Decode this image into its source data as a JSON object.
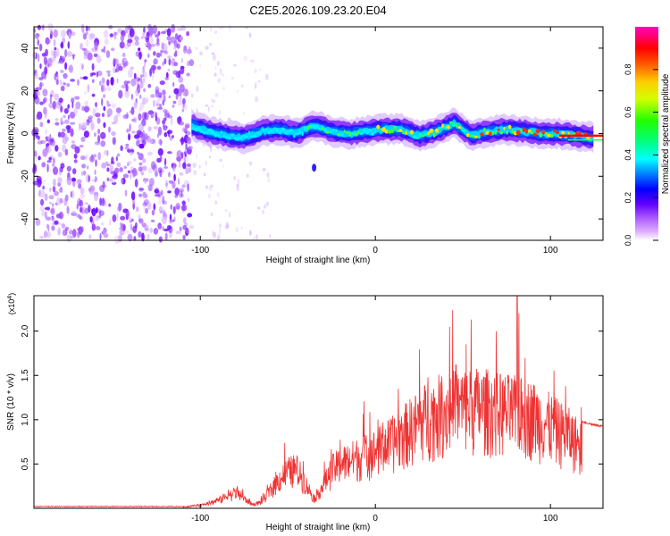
{
  "page_title": "C2E5.2026.109.23.20.E04",
  "chart_data": [
    {
      "type": "heatmap",
      "title": "C2E5.2026.109.23.20.E04",
      "xlabel": "Height of straight line (km)",
      "ylabel": "Frequency (Hz)",
      "xlim": [
        -195,
        130
      ],
      "ylim": [
        -50,
        50
      ],
      "xticks": [
        -100,
        0,
        100
      ],
      "xtick_labels": [
        "-100",
        "0",
        "100"
      ],
      "yticks": [
        -40,
        -20,
        0,
        20,
        40
      ],
      "ytick_labels": [
        "-40",
        "-20",
        "0",
        "20",
        "40"
      ],
      "colorbar": {
        "label": "Normalized spectral amplitude",
        "range": [
          0,
          1
        ],
        "ticks": [
          0.0,
          0.2,
          0.4,
          0.6,
          0.8
        ],
        "tick_labels": [
          "0.0",
          "0.2",
          "0.4",
          "0.6",
          "0.8"
        ],
        "colormap": [
          "#ffffff",
          "#c070ff",
          "#7000ff",
          "#0000ff",
          "#00c0ff",
          "#00ffff",
          "#00ff40",
          "#c0ff00",
          "#ffff00",
          "#ff8000",
          "#ff0000",
          "#ff00c0"
        ]
      },
      "ridge_x": [
        -105,
        -95,
        -85,
        -75,
        -65,
        -55,
        -45,
        -35,
        -25,
        -15,
        -5,
        5,
        15,
        25,
        35,
        45,
        55,
        65,
        75,
        85,
        95,
        105,
        115,
        125
      ],
      "ridge_y": [
        4,
        1,
        -1,
        -2,
        1,
        2,
        0,
        4,
        1,
        0,
        1,
        2,
        2,
        -1,
        1,
        5,
        -1,
        1,
        2,
        1,
        0,
        0,
        -1,
        -2
      ],
      "noise_region_x": [
        -195,
        -105
      ]
    },
    {
      "type": "line",
      "xlabel": "Height of straight line (km)",
      "ylabel": "SNR (10 * v/v)",
      "y_multiplier": "(x10",
      "y_multiplier_exp": "4",
      "y_multiplier_close": ")",
      "xlim": [
        -195,
        130
      ],
      "ylim": [
        0,
        2.4
      ],
      "xticks": [
        -100,
        0,
        100
      ],
      "xtick_labels": [
        "-100",
        "0",
        "100"
      ],
      "yticks": [
        0.5,
        1.0,
        1.5,
        2.0
      ],
      "ytick_labels": [
        "0.5",
        "1.0",
        "1.5",
        "2.0"
      ],
      "color": "#ee3333",
      "envelope_x": [
        -195,
        -110,
        -100,
        -90,
        -85,
        -80,
        -75,
        -70,
        -65,
        -60,
        -55,
        -50,
        -45,
        -40,
        -35,
        -30,
        -25,
        -20,
        -10,
        0,
        10,
        20,
        30,
        40,
        50,
        60,
        70,
        80,
        90,
        100,
        110,
        118,
        125,
        130
      ],
      "envelope_y": [
        0.02,
        0.02,
        0.05,
        0.12,
        0.18,
        0.25,
        0.15,
        0.06,
        0.1,
        0.28,
        0.45,
        0.58,
        0.62,
        0.4,
        0.15,
        0.35,
        0.6,
        0.7,
        0.8,
        0.9,
        1.05,
        1.25,
        1.45,
        1.55,
        1.6,
        1.6,
        1.55,
        1.5,
        1.45,
        1.3,
        1.15,
        0.98,
        0.94,
        0.93
      ],
      "peaks": [
        {
          "x": 46,
          "y": 1.62
        },
        {
          "x": 69,
          "y": 2.0
        },
        {
          "x": 81,
          "y": 2.4
        },
        {
          "x": 82,
          "y": 2.2
        }
      ]
    }
  ]
}
